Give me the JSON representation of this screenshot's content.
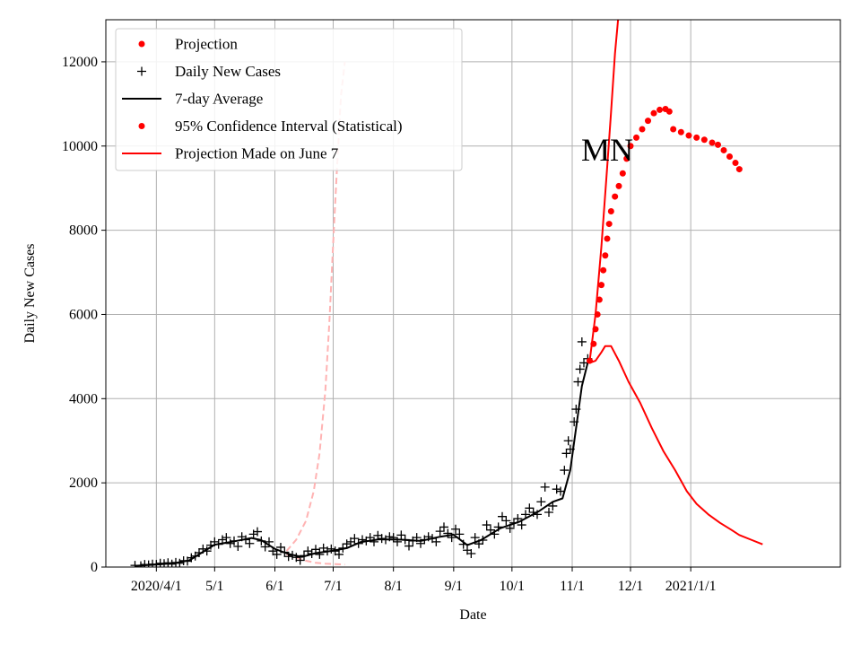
{
  "chart_data": {
    "type": "line",
    "annotation": "MN",
    "xlabel": "Date",
    "ylabel": "Daily New Cases",
    "ylim": [
      0,
      13000
    ],
    "xlim": [
      "2020-03-06",
      "2021-03-19"
    ],
    "grid": true,
    "legend_position": "top-left",
    "x_ticks": [
      {
        "date": "2020-04-01",
        "label": "2020/4/1"
      },
      {
        "date": "2020-05-01",
        "label": "5/1"
      },
      {
        "date": "2020-06-01",
        "label": "6/1"
      },
      {
        "date": "2020-07-01",
        "label": "7/1"
      },
      {
        "date": "2020-08-01",
        "label": "8/1"
      },
      {
        "date": "2020-09-01",
        "label": "9/1"
      },
      {
        "date": "2020-10-01",
        "label": "10/1"
      },
      {
        "date": "2020-11-01",
        "label": "11/1"
      },
      {
        "date": "2020-12-01",
        "label": "12/1"
      },
      {
        "date": "2021-01-01",
        "label": "2021/1/1"
      }
    ],
    "y_ticks": [
      0,
      2000,
      4000,
      6000,
      8000,
      10000,
      12000
    ],
    "legend": [
      {
        "label": "Projection",
        "marker": "dot",
        "color": "#ff0000"
      },
      {
        "label": "Daily New Cases",
        "marker": "plus",
        "color": "#000000"
      },
      {
        "label": "7-day Average",
        "marker": "line",
        "color": "#000000"
      },
      {
        "label": "95% Confidence Interval (Statistical)",
        "marker": "dot",
        "color": "#ff0000"
      },
      {
        "label": "Projection Made on June 7",
        "marker": "line",
        "color": "#ff0000"
      }
    ],
    "series": [
      {
        "name": "Daily New Cases",
        "style": "plus",
        "color": "#000000",
        "points": [
          [
            "2020-03-21",
            40
          ],
          [
            "2020-03-24",
            30
          ],
          [
            "2020-03-26",
            60
          ],
          [
            "2020-03-28",
            50
          ],
          [
            "2020-03-30",
            70
          ],
          [
            "2020-04-01",
            60
          ],
          [
            "2020-04-03",
            90
          ],
          [
            "2020-04-05",
            80
          ],
          [
            "2020-04-07",
            100
          ],
          [
            "2020-04-09",
            70
          ],
          [
            "2020-04-11",
            110
          ],
          [
            "2020-04-13",
            90
          ],
          [
            "2020-04-15",
            150
          ],
          [
            "2020-04-17",
            140
          ],
          [
            "2020-04-19",
            220
          ],
          [
            "2020-04-21",
            260
          ],
          [
            "2020-04-23",
            340
          ],
          [
            "2020-04-25",
            430
          ],
          [
            "2020-04-27",
            380
          ],
          [
            "2020-04-29",
            520
          ],
          [
            "2020-05-01",
            600
          ],
          [
            "2020-05-03",
            540
          ],
          [
            "2020-05-05",
            650
          ],
          [
            "2020-05-07",
            700
          ],
          [
            "2020-05-09",
            560
          ],
          [
            "2020-05-11",
            620
          ],
          [
            "2020-05-13",
            490
          ],
          [
            "2020-05-15",
            720
          ],
          [
            "2020-05-17",
            650
          ],
          [
            "2020-05-19",
            560
          ],
          [
            "2020-05-21",
            780
          ],
          [
            "2020-05-23",
            840
          ],
          [
            "2020-05-25",
            620
          ],
          [
            "2020-05-27",
            480
          ],
          [
            "2020-05-29",
            600
          ],
          [
            "2020-05-31",
            380
          ],
          [
            "2020-06-02",
            300
          ],
          [
            "2020-06-04",
            470
          ],
          [
            "2020-06-06",
            350
          ],
          [
            "2020-06-08",
            250
          ],
          [
            "2020-06-10",
            280
          ],
          [
            "2020-06-12",
            230
          ],
          [
            "2020-06-14",
            160
          ],
          [
            "2020-06-16",
            270
          ],
          [
            "2020-06-18",
            380
          ],
          [
            "2020-06-20",
            320
          ],
          [
            "2020-06-22",
            420
          ],
          [
            "2020-06-24",
            300
          ],
          [
            "2020-06-26",
            450
          ],
          [
            "2020-06-28",
            380
          ],
          [
            "2020-06-30",
            430
          ],
          [
            "2020-07-02",
            380
          ],
          [
            "2020-07-04",
            300
          ],
          [
            "2020-07-06",
            450
          ],
          [
            "2020-07-08",
            550
          ],
          [
            "2020-07-10",
            600
          ],
          [
            "2020-07-12",
            680
          ],
          [
            "2020-07-14",
            560
          ],
          [
            "2020-07-16",
            650
          ],
          [
            "2020-07-18",
            620
          ],
          [
            "2020-07-20",
            700
          ],
          [
            "2020-07-22",
            600
          ],
          [
            "2020-07-24",
            750
          ],
          [
            "2020-07-26",
            680
          ],
          [
            "2020-07-28",
            650
          ],
          [
            "2020-07-30",
            720
          ],
          [
            "2020-08-01",
            700
          ],
          [
            "2020-08-03",
            600
          ],
          [
            "2020-08-05",
            760
          ],
          [
            "2020-08-07",
            650
          ],
          [
            "2020-08-09",
            500
          ],
          [
            "2020-08-11",
            620
          ],
          [
            "2020-08-13",
            700
          ],
          [
            "2020-08-15",
            560
          ],
          [
            "2020-08-17",
            650
          ],
          [
            "2020-08-19",
            720
          ],
          [
            "2020-08-21",
            680
          ],
          [
            "2020-08-23",
            600
          ],
          [
            "2020-08-25",
            850
          ],
          [
            "2020-08-27",
            950
          ],
          [
            "2020-08-29",
            800
          ],
          [
            "2020-08-31",
            700
          ],
          [
            "2020-09-02",
            900
          ],
          [
            "2020-09-04",
            780
          ],
          [
            "2020-09-06",
            540
          ],
          [
            "2020-09-08",
            400
          ],
          [
            "2020-09-10",
            320
          ],
          [
            "2020-09-12",
            700
          ],
          [
            "2020-09-14",
            550
          ],
          [
            "2020-09-16",
            640
          ],
          [
            "2020-09-18",
            1000
          ],
          [
            "2020-09-20",
            880
          ],
          [
            "2020-09-22",
            780
          ],
          [
            "2020-09-24",
            950
          ],
          [
            "2020-09-26",
            1200
          ],
          [
            "2020-09-28",
            1100
          ],
          [
            "2020-09-30",
            920
          ],
          [
            "2020-10-02",
            1050
          ],
          [
            "2020-10-04",
            1150
          ],
          [
            "2020-10-06",
            1000
          ],
          [
            "2020-10-08",
            1250
          ],
          [
            "2020-10-10",
            1400
          ],
          [
            "2020-10-12",
            1300
          ],
          [
            "2020-10-14",
            1250
          ],
          [
            "2020-10-16",
            1550
          ],
          [
            "2020-10-18",
            1900
          ],
          [
            "2020-10-20",
            1300
          ],
          [
            "2020-10-22",
            1450
          ],
          [
            "2020-10-24",
            1850
          ],
          [
            "2020-10-26",
            1800
          ],
          [
            "2020-10-28",
            2300
          ],
          [
            "2020-10-29",
            2700
          ],
          [
            "2020-10-30",
            3000
          ],
          [
            "2020-10-31",
            2800
          ],
          [
            "2020-11-02",
            3450
          ],
          [
            "2020-11-03",
            3750
          ],
          [
            "2020-11-04",
            4400
          ],
          [
            "2020-11-05",
            4700
          ],
          [
            "2020-11-06",
            5350
          ],
          [
            "2020-11-07",
            4850
          ],
          [
            "2020-11-09",
            4950
          ]
        ]
      },
      {
        "name": "7-day Average",
        "style": "line",
        "color": "#000000",
        "points": [
          [
            "2020-03-21",
            30
          ],
          [
            "2020-04-01",
            60
          ],
          [
            "2020-04-10",
            90
          ],
          [
            "2020-04-18",
            160
          ],
          [
            "2020-04-25",
            360
          ],
          [
            "2020-05-01",
            530
          ],
          [
            "2020-05-10",
            600
          ],
          [
            "2020-05-20",
            690
          ],
          [
            "2020-05-25",
            640
          ],
          [
            "2020-06-01",
            430
          ],
          [
            "2020-06-08",
            310
          ],
          [
            "2020-06-15",
            240
          ],
          [
            "2020-06-22",
            330
          ],
          [
            "2020-07-01",
            390
          ],
          [
            "2020-07-08",
            450
          ],
          [
            "2020-07-15",
            590
          ],
          [
            "2020-07-25",
            660
          ],
          [
            "2020-08-05",
            650
          ],
          [
            "2020-08-15",
            620
          ],
          [
            "2020-08-25",
            720
          ],
          [
            "2020-09-01",
            770
          ],
          [
            "2020-09-08",
            520
          ],
          [
            "2020-09-15",
            640
          ],
          [
            "2020-09-25",
            920
          ],
          [
            "2020-10-05",
            1080
          ],
          [
            "2020-10-15",
            1330
          ],
          [
            "2020-10-22",
            1550
          ],
          [
            "2020-10-27",
            1630
          ],
          [
            "2020-10-31",
            2300
          ],
          [
            "2020-11-03",
            3300
          ],
          [
            "2020-11-06",
            4300
          ],
          [
            "2020-11-09",
            4850
          ]
        ]
      },
      {
        "name": "Projection",
        "style": "dot",
        "color": "#ff0000",
        "points": [
          [
            "2020-11-10",
            4900
          ],
          [
            "2020-11-12",
            5300
          ],
          [
            "2020-11-13",
            5650
          ],
          [
            "2020-11-14",
            6000
          ],
          [
            "2020-11-15",
            6350
          ],
          [
            "2020-11-16",
            6700
          ],
          [
            "2020-11-17",
            7050
          ],
          [
            "2020-11-18",
            7400
          ],
          [
            "2020-11-19",
            7800
          ],
          [
            "2020-11-20",
            8150
          ],
          [
            "2020-11-21",
            8450
          ],
          [
            "2020-11-23",
            8800
          ],
          [
            "2020-11-25",
            9050
          ],
          [
            "2020-11-27",
            9350
          ],
          [
            "2020-11-29",
            9700
          ],
          [
            "2020-12-01",
            10000
          ],
          [
            "2020-12-04",
            10200
          ],
          [
            "2020-12-07",
            10400
          ],
          [
            "2020-12-10",
            10600
          ],
          [
            "2020-12-13",
            10780
          ],
          [
            "2020-12-16",
            10860
          ],
          [
            "2020-12-19",
            10880
          ],
          [
            "2020-12-21",
            10820
          ],
          [
            "2020-12-23",
            10400
          ],
          [
            "2020-12-27",
            10330
          ],
          [
            "2020-12-31",
            10250
          ],
          [
            "2021-01-04",
            10200
          ],
          [
            "2021-01-08",
            10150
          ],
          [
            "2021-01-12",
            10080
          ],
          [
            "2021-01-15",
            10030
          ],
          [
            "2021-01-18",
            9900
          ],
          [
            "2021-01-21",
            9750
          ],
          [
            "2021-01-24",
            9600
          ],
          [
            "2021-01-26",
            9450
          ]
        ]
      },
      {
        "name": "95% Confidence Interval (Statistical)",
        "style": "line",
        "color": "#ff0000",
        "points": [
          [
            "2020-11-10",
            4900
          ],
          [
            "2020-11-13",
            6000
          ],
          [
            "2020-11-16",
            7600
          ],
          [
            "2020-11-19",
            9500
          ],
          [
            "2020-11-21",
            10800
          ],
          [
            "2020-11-23",
            12200
          ],
          [
            "2020-11-25",
            13200
          ]
        ]
      },
      {
        "name": "95% Confidence Interval (Statistical)",
        "style": "line",
        "color": "#ff0000",
        "points": [
          [
            "2020-11-10",
            4850
          ],
          [
            "2020-11-13",
            4900
          ],
          [
            "2020-11-16",
            5100
          ],
          [
            "2020-11-18",
            5250
          ],
          [
            "2020-11-21",
            5250
          ],
          [
            "2020-11-25",
            4900
          ],
          [
            "2020-11-30",
            4400
          ],
          [
            "2020-12-06",
            3900
          ],
          [
            "2020-12-12",
            3300
          ],
          [
            "2020-12-18",
            2750
          ],
          [
            "2020-12-24",
            2300
          ],
          [
            "2020-12-30",
            1800
          ],
          [
            "2021-01-04",
            1500
          ],
          [
            "2021-01-10",
            1250
          ],
          [
            "2021-01-16",
            1050
          ],
          [
            "2021-01-22",
            880
          ],
          [
            "2021-01-26",
            760
          ],
          [
            "2021-02-01",
            650
          ],
          [
            "2021-02-07",
            540
          ]
        ]
      },
      {
        "name": "Projection Made on June 7",
        "style": "dashed",
        "color": "#ffb3b3",
        "points": [
          [
            "2020-06-07",
            380
          ],
          [
            "2020-06-12",
            650
          ],
          [
            "2020-06-17",
            1100
          ],
          [
            "2020-06-21",
            1800
          ],
          [
            "2020-06-24",
            2700
          ],
          [
            "2020-06-27",
            4200
          ],
          [
            "2020-06-29",
            5800
          ],
          [
            "2020-07-01",
            7700
          ],
          [
            "2020-07-03",
            9500
          ],
          [
            "2020-07-05",
            11200
          ],
          [
            "2020-07-07",
            12000
          ]
        ]
      },
      {
        "name": "Projection Made on June 7",
        "style": "dashed",
        "color": "#ffb3b3",
        "points": [
          [
            "2020-06-07",
            300
          ],
          [
            "2020-06-12",
            220
          ],
          [
            "2020-06-17",
            150
          ],
          [
            "2020-06-22",
            100
          ],
          [
            "2020-06-27",
            80
          ],
          [
            "2020-07-02",
            70
          ],
          [
            "2020-07-07",
            60
          ]
        ]
      }
    ]
  }
}
